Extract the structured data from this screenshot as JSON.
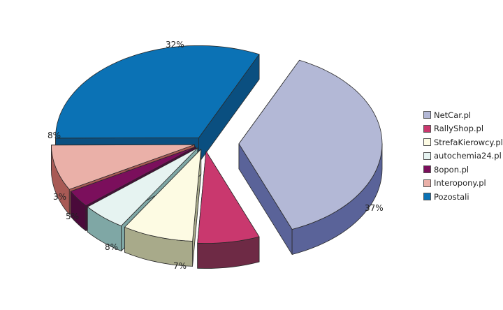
{
  "chart_data": {
    "type": "pie",
    "style": "3d-exploded",
    "legend_position": "right",
    "slices": [
      {
        "name": "NetCar.pl",
        "value": 37,
        "label": "37%",
        "color": "#b3b8d6",
        "side_color": "#5a6399"
      },
      {
        "name": "RallyShop.pl",
        "value": 7,
        "label": "7%",
        "color": "#c9386e",
        "side_color": "#6e2a45"
      },
      {
        "name": "StrefaKierowcy.pl",
        "value": 8,
        "label": "8%",
        "color": "#fdfbe3",
        "side_color": "#a8aa8a"
      },
      {
        "name": "autochemia24.pl",
        "value": 5,
        "label": "5%",
        "color": "#e6f3f1",
        "side_color": "#7fa7a5"
      },
      {
        "name": "8opon.pl",
        "value": 3,
        "label": "3%",
        "color": "#7b0f5c",
        "side_color": "#4a0a3a"
      },
      {
        "name": "Interopony.pl",
        "value": 8,
        "label": "8%",
        "color": "#eab0a8",
        "side_color": "#a85a55"
      },
      {
        "name": "Pozostali",
        "value": 32,
        "label": "32%",
        "color": "#0b72b5",
        "side_color": "#0a4f80"
      }
    ]
  }
}
